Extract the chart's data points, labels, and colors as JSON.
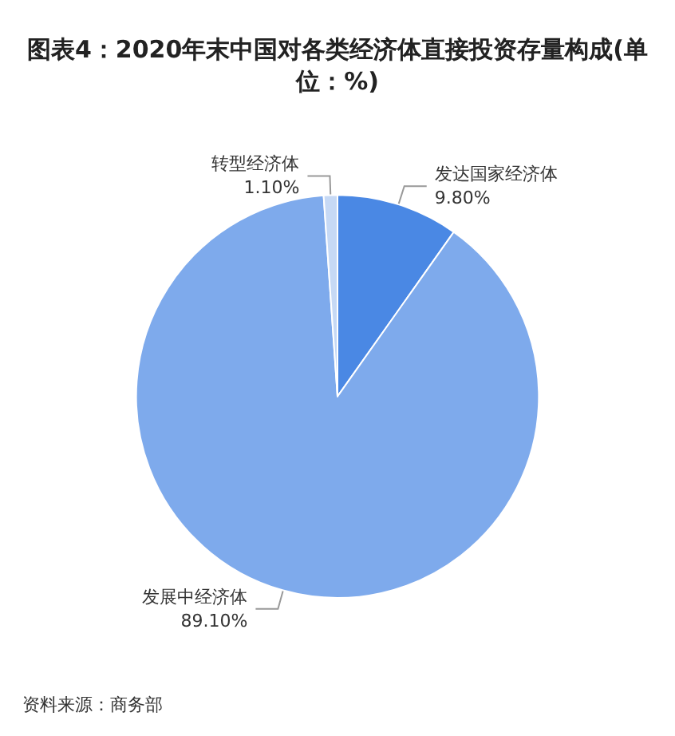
{
  "chart_data": {
    "type": "pie",
    "title": "图表4：2020年末中国对各类经济体直接投资存量构成(单位：%)",
    "categories": [
      "发达国家经济体",
      "发展中经济体",
      "转型经济体"
    ],
    "values": [
      9.8,
      89.1,
      1.1
    ],
    "value_labels": [
      "9.80%",
      "89.10%",
      "1.10%"
    ],
    "colors": [
      "#4a88e4",
      "#7eaaec",
      "#c6d9f5"
    ],
    "annotations": [
      "资料来源：商务部"
    ],
    "legend": false
  }
}
